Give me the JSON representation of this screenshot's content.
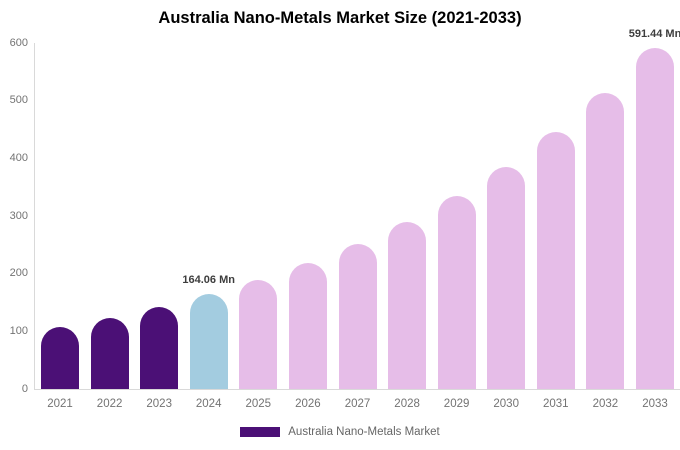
{
  "chart_data": {
    "type": "bar",
    "title": "Australia Nano-Metals Market Size (2021-2033)",
    "xlabel": "",
    "ylabel": "",
    "unit": "Mn",
    "categories": [
      "2021",
      "2022",
      "2023",
      "2024",
      "2025",
      "2026",
      "2027",
      "2028",
      "2029",
      "2030",
      "2031",
      "2032",
      "2033"
    ],
    "values": [
      107,
      123.4,
      142.3,
      164.06,
      189.2,
      218.2,
      251.6,
      290.1,
      334.5,
      385.8,
      444.9,
      513,
      591.44
    ],
    "bar_roles": [
      "historical",
      "historical",
      "historical",
      "base_year",
      "forecast",
      "forecast",
      "forecast",
      "forecast",
      "forecast",
      "forecast",
      "forecast",
      "forecast",
      "forecast"
    ],
    "ylim": [
      0,
      600
    ],
    "yticks": [
      0,
      100,
      200,
      300,
      400,
      500,
      600
    ],
    "grid": "off",
    "legend_position": "bottom-center",
    "annotations": [
      {
        "category": "2024",
        "label": "164.06 Mn"
      },
      {
        "category": "2033",
        "label": "591.44 Mn"
      }
    ],
    "legend": [
      {
        "label": "Australia Nano-Metals Market",
        "color": "#4b1076"
      }
    ],
    "colors": {
      "historical": "#4b1076",
      "base_year": "#a3cce0",
      "forecast": "#e6bde8",
      "axis_line": "#d9d9d9",
      "tick_label": "#737373",
      "annotation_text": "#3d3d3d",
      "title_text": "#000000"
    }
  }
}
